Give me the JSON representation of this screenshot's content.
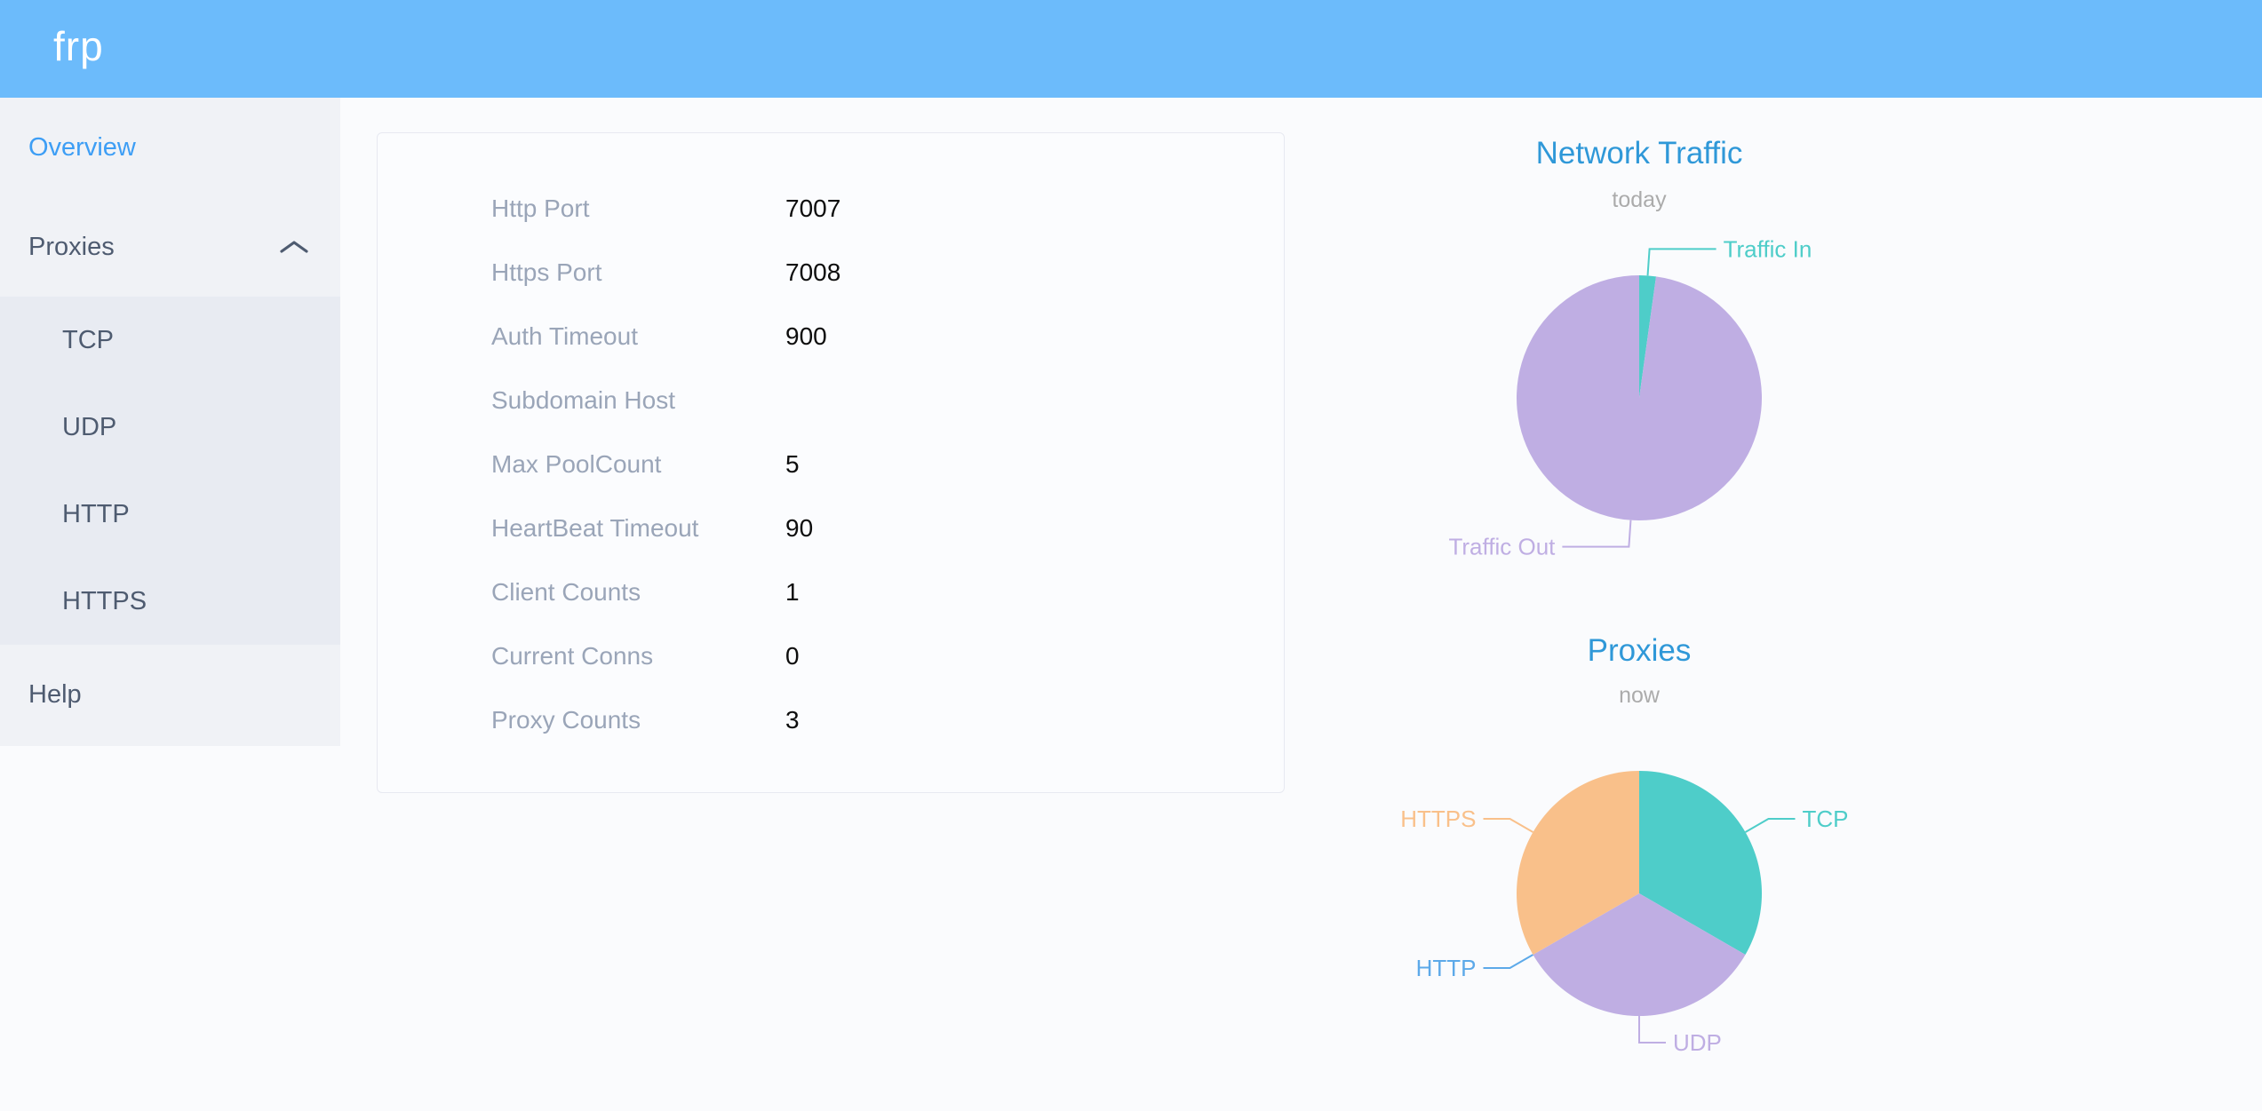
{
  "header": {
    "logo_text": "frp",
    "bg_color": "#6cbbfb"
  },
  "sidebar": {
    "active_color": "#3d9ef5",
    "text_color": "#4e5b70",
    "items": [
      {
        "label": "Overview",
        "active": true
      },
      {
        "label": "Proxies",
        "expanded": true,
        "icon": "chevron-up",
        "children": [
          {
            "label": "TCP"
          },
          {
            "label": "UDP"
          },
          {
            "label": "HTTP"
          },
          {
            "label": "HTTPS"
          }
        ]
      },
      {
        "label": "Help"
      }
    ]
  },
  "server_info": {
    "rows": [
      {
        "label": "Http Port",
        "value": "7007"
      },
      {
        "label": "Https Port",
        "value": "7008"
      },
      {
        "label": "Auth Timeout",
        "value": "900"
      },
      {
        "label": "Subdomain Host",
        "value": ""
      },
      {
        "label": "Max PoolCount",
        "value": "5"
      },
      {
        "label": "HeartBeat Timeout",
        "value": "90"
      },
      {
        "label": "Client Counts",
        "value": "1"
      },
      {
        "label": "Current Conns",
        "value": "0"
      },
      {
        "label": "Proxy Counts",
        "value": "3"
      }
    ]
  },
  "chart_data": [
    {
      "type": "pie",
      "title": "Network Traffic",
      "subtitle": "today",
      "value_unit": "percent (estimated from arc angles; no numeric labels shown)",
      "legend": "none",
      "label_style": "outside-callout",
      "title_color": "#2f98d8",
      "subtitle_color": "#ababab",
      "series": [
        {
          "name": "Traffic In",
          "value": 2.2,
          "color": "#4ecdc9",
          "label_line_len2": 75
        },
        {
          "name": "Traffic Out",
          "value": 97.8,
          "color": "#bfaee3",
          "label_line_len2": 75
        }
      ]
    },
    {
      "type": "pie",
      "title": "Proxies",
      "subtitle": "now",
      "value_unit": "proxy count",
      "legend": "none",
      "label_style": "outside-callout",
      "title_color": "#2f98d8",
      "subtitle_color": "#ababab",
      "series": [
        {
          "name": "TCP",
          "value": 1,
          "color": "#4ecdc9"
        },
        {
          "name": "UDP",
          "value": 1,
          "color": "#bfaee3"
        },
        {
          "name": "HTTP",
          "value": 0,
          "color": "#5ca9e9"
        },
        {
          "name": "HTTPS",
          "value": 1,
          "color": "#f9c08a"
        }
      ]
    }
  ]
}
